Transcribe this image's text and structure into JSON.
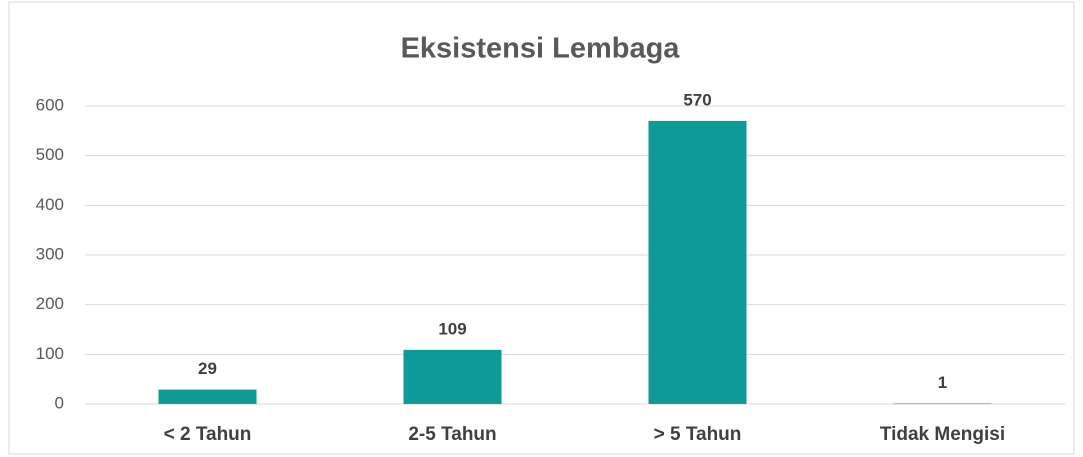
{
  "chart_data": {
    "type": "bar",
    "title": "Eksistensi Lembaga",
    "categories": [
      "< 2 Tahun",
      "2-5 Tahun",
      "> 5 Tahun",
      "Tidak Mengisi"
    ],
    "values": [
      29,
      109,
      570,
      1
    ],
    "color": "#0e9a96",
    "ylim": [
      0,
      600
    ],
    "yticks": [
      0,
      100,
      200,
      300,
      400,
      500,
      600
    ],
    "grid": true
  }
}
